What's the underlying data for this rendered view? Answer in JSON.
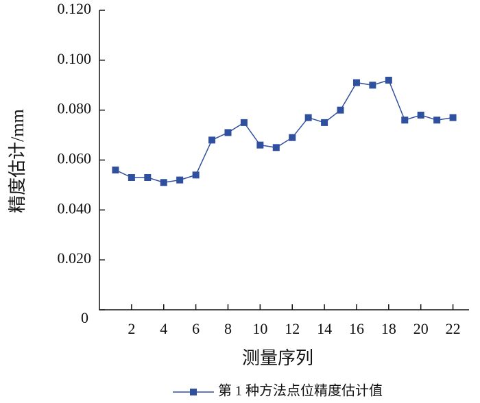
{
  "chart_data": {
    "type": "line",
    "x_label": "测量序列",
    "y_label": "精度估计/mm",
    "x": [
      1,
      2,
      3,
      4,
      5,
      6,
      7,
      8,
      9,
      10,
      11,
      12,
      13,
      14,
      15,
      16,
      17,
      18,
      19,
      20,
      21,
      22
    ],
    "series": [
      {
        "name": "第 1 种方法点位精度估计值",
        "color": "#2f4f9f",
        "values": [
          0.056,
          0.053,
          0.053,
          0.051,
          0.052,
          0.054,
          0.068,
          0.071,
          0.075,
          0.066,
          0.065,
          0.069,
          0.077,
          0.075,
          0.08,
          0.091,
          0.09,
          0.092,
          0.076,
          0.078,
          0.076,
          0.077
        ]
      }
    ],
    "xlim": [
      0,
      23
    ],
    "xticks": [
      2,
      4,
      6,
      8,
      10,
      12,
      14,
      16,
      18,
      20,
      22
    ],
    "ylim": [
      0,
      0.12
    ],
    "yticks": [
      0,
      {
        "value": 0.02,
        "label": "0.020"
      },
      {
        "value": 0.04,
        "label": "0.040"
      },
      {
        "value": 0.06,
        "label": "0.060"
      },
      {
        "value": 0.08,
        "label": "0.080"
      },
      {
        "value": 0.1,
        "label": "0.100"
      },
      {
        "value": 0.12,
        "label": "0.120"
      }
    ],
    "legend": "bottom"
  }
}
